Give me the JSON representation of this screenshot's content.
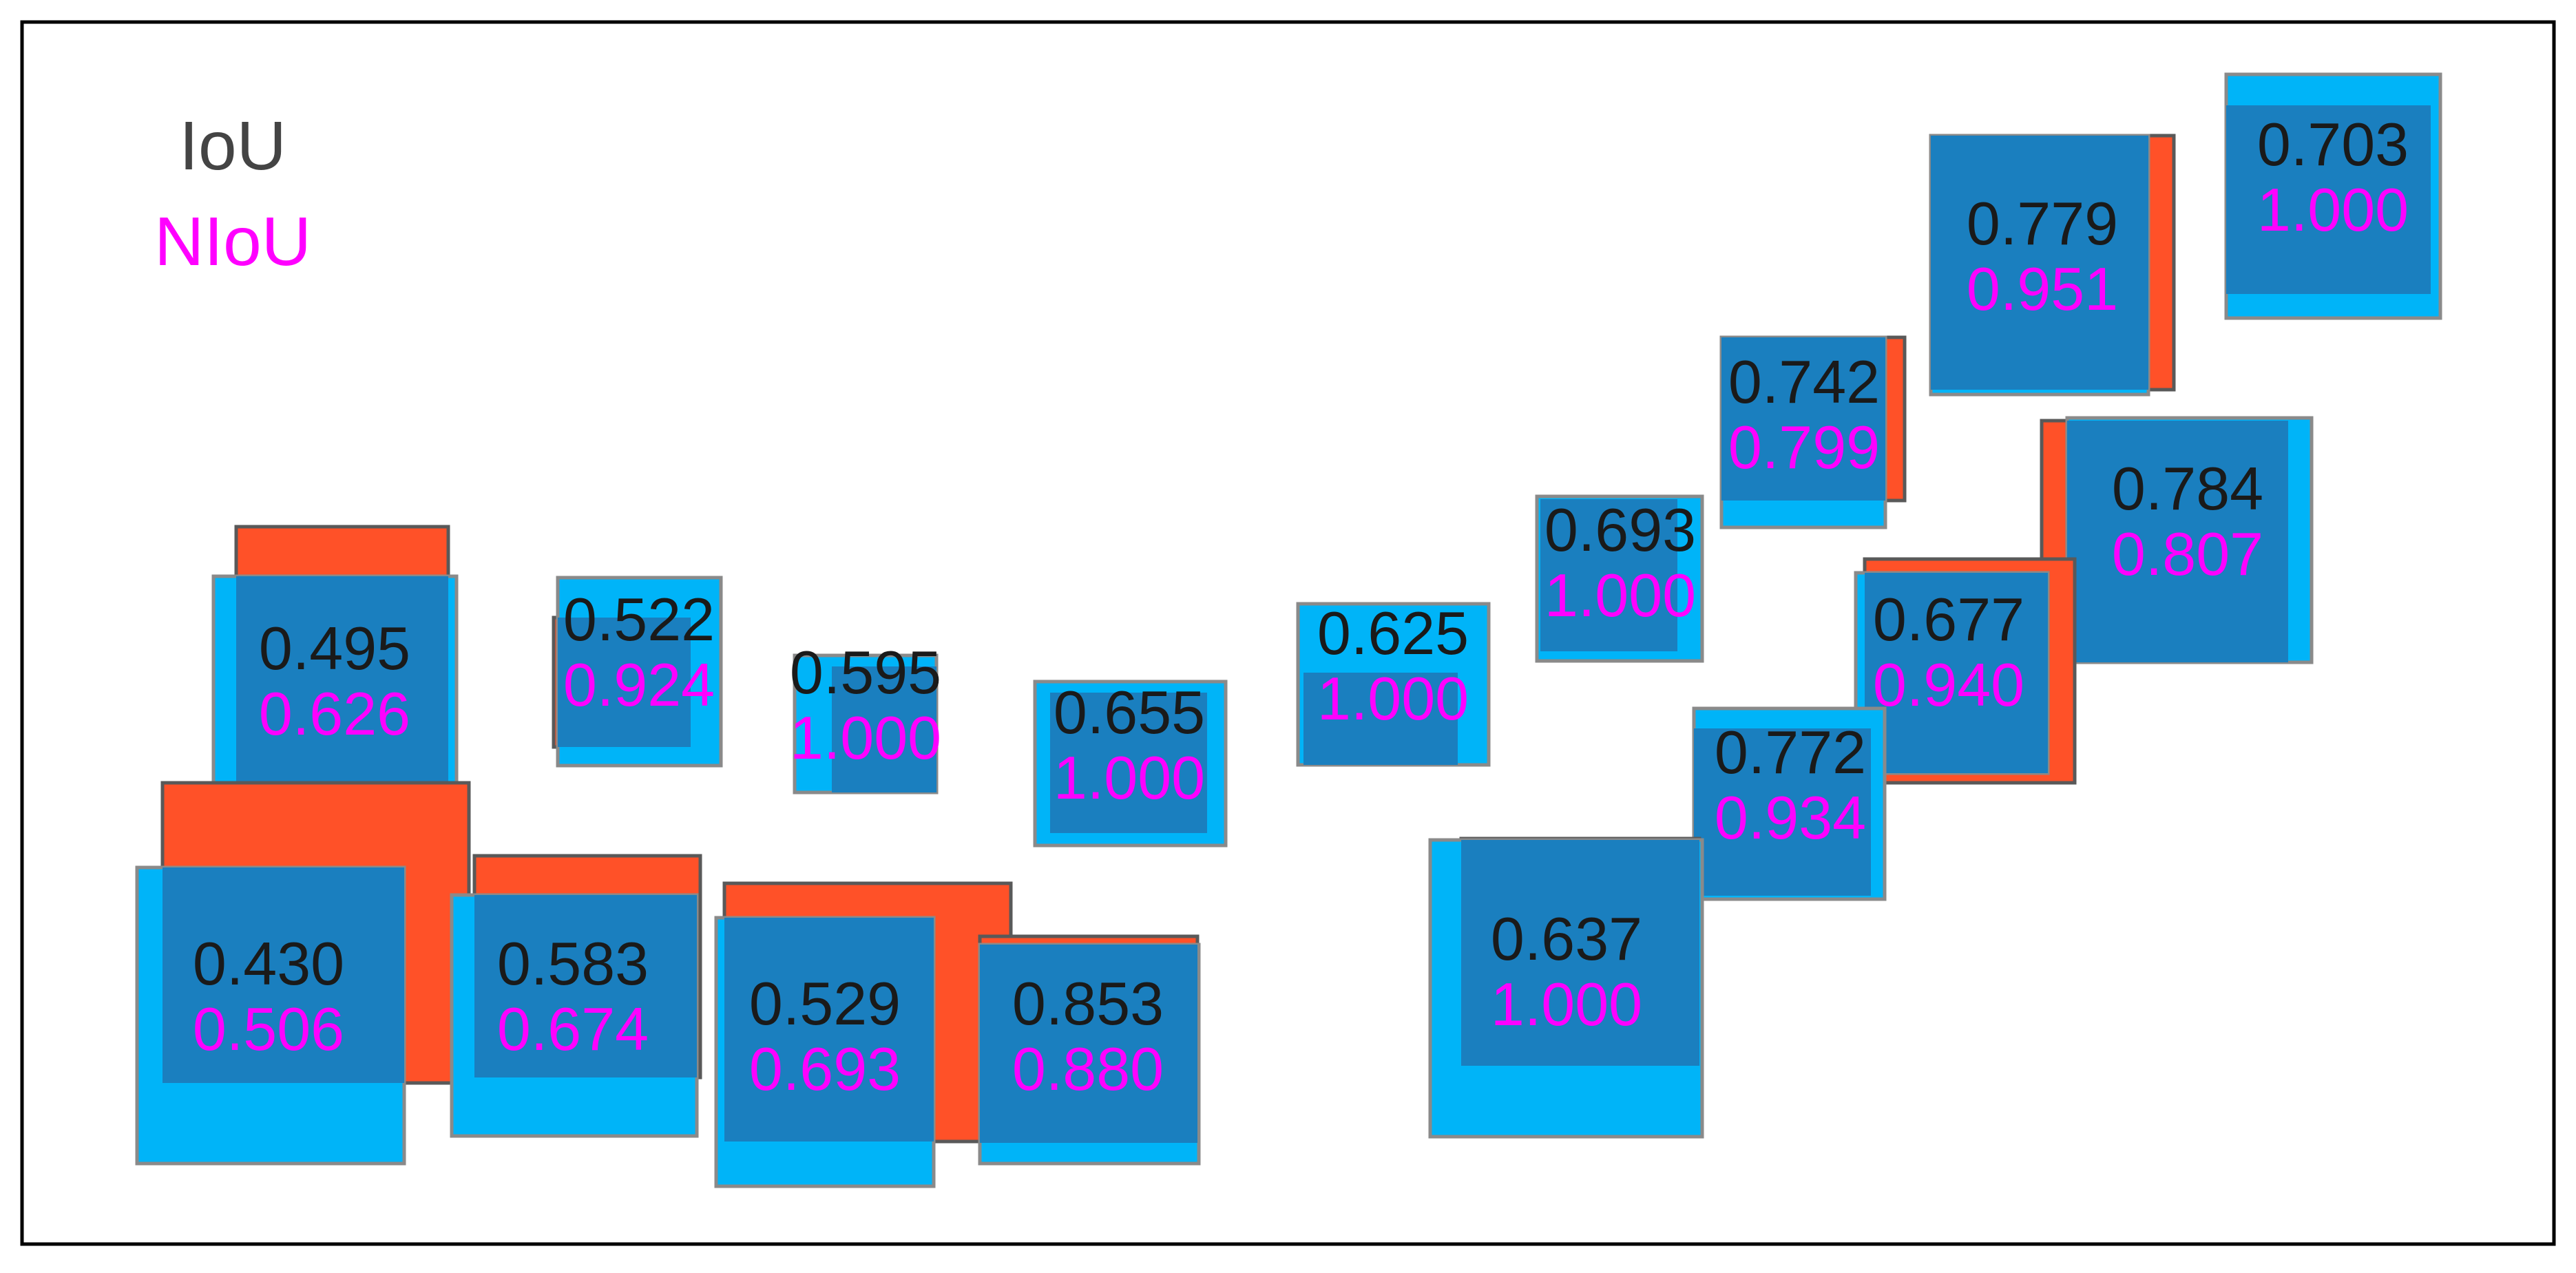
{
  "legend": {
    "iou_label": "IoU",
    "niou_label": "NIoU"
  },
  "colors": {
    "target_fill": "#FF5128",
    "gt_fill": "#00B4F8",
    "overlap_fill": "#1A7FBF",
    "iou_text": "#1a1a1a",
    "niou_text": "#FF00FF",
    "frame": "#000000"
  },
  "pairs": [
    {
      "id": "p01",
      "iou": "0.495",
      "niou": "0.626"
    },
    {
      "id": "p02",
      "iou": "0.522",
      "niou": "0.924"
    },
    {
      "id": "p03",
      "iou": "0.595",
      "niou": "1.000"
    },
    {
      "id": "p04",
      "iou": "0.655",
      "niou": "1.000"
    },
    {
      "id": "p05",
      "iou": "0.625",
      "niou": "1.000"
    },
    {
      "id": "p06",
      "iou": "0.693",
      "niou": "1.000"
    },
    {
      "id": "p07",
      "iou": "0.742",
      "niou": "0.799"
    },
    {
      "id": "p08",
      "iou": "0.779",
      "niou": "0.951"
    },
    {
      "id": "p09",
      "iou": "0.703",
      "niou": "1.000"
    },
    {
      "id": "p10",
      "iou": "0.784",
      "niou": "0.807"
    },
    {
      "id": "p11",
      "iou": "0.677",
      "niou": "0.940"
    },
    {
      "id": "p12",
      "iou": "0.772",
      "niou": "0.934"
    },
    {
      "id": "p13",
      "iou": "0.637",
      "niou": "1.000"
    },
    {
      "id": "p14",
      "iou": "0.430",
      "niou": "0.506"
    },
    {
      "id": "p15",
      "iou": "0.583",
      "niou": "0.674"
    },
    {
      "id": "p16",
      "iou": "0.529",
      "niou": "0.693"
    },
    {
      "id": "p17",
      "iou": "0.853",
      "niou": "0.880"
    }
  ]
}
